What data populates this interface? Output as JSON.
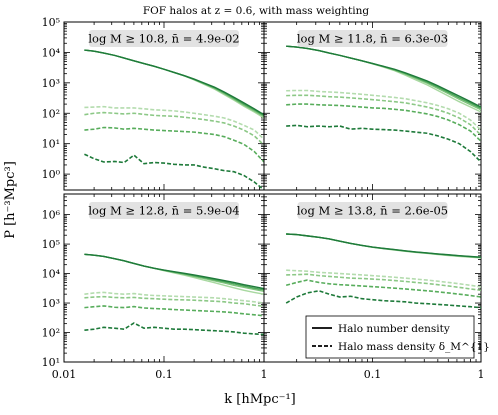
{
  "figure": {
    "title": "FOF halos at z = 0.6, with mass weighting",
    "xlabel": "k [hMpc⁻¹]",
    "ylabel": "P [h⁻³Mpc³]"
  },
  "legend": {
    "solid": "Halo number density",
    "dashed": "Halo mass density δ_M^{1}"
  },
  "colors": {
    "solid": [
      "#c8c8c8",
      "#a8d8a0",
      "#7cc27a",
      "#4aa458",
      "#1e7a3a"
    ],
    "dashed": [
      "#d0d0d0",
      "#b4dcae",
      "#8cc886",
      "#58ad5c",
      "#1e7a3a"
    ]
  },
  "chart_data": [
    {
      "type": "line",
      "label": "log M ≥ 10.8, n̄ = 4.9e-02",
      "xscale": "log",
      "yscale": "log",
      "xlim": [
        0.01,
        1
      ],
      "ylim": [
        0.3,
        100000
      ],
      "yticks": [
        1,
        10,
        100,
        1000,
        10000,
        100000
      ],
      "yticklabels": [
        "10⁰",
        "10¹",
        "10²",
        "10³",
        "10⁴",
        "10⁵"
      ],
      "x": [
        0.016,
        0.02,
        0.025,
        0.032,
        0.04,
        0.05,
        0.063,
        0.08,
        0.1,
        0.126,
        0.16,
        0.2,
        0.25,
        0.32,
        0.4,
        0.5,
        0.63,
        0.8,
        1.0
      ],
      "series_solid": [
        [
          12000,
          11000,
          9500,
          8000,
          6500,
          5300,
          4300,
          3500,
          2800,
          2200,
          1700,
          1250,
          900,
          620,
          410,
          270,
          170,
          110,
          70
        ],
        [
          12000,
          11000,
          9500,
          8000,
          6500,
          5300,
          4300,
          3500,
          2800,
          2200,
          1700,
          1280,
          940,
          660,
          440,
          290,
          185,
          120,
          78
        ],
        [
          12000,
          11000,
          9500,
          8000,
          6500,
          5300,
          4300,
          3500,
          2800,
          2200,
          1700,
          1300,
          960,
          690,
          470,
          310,
          200,
          130,
          84
        ],
        [
          12000,
          11000,
          9500,
          8000,
          6500,
          5300,
          4300,
          3500,
          2800,
          2200,
          1720,
          1330,
          1000,
          720,
          500,
          335,
          220,
          140,
          90
        ]
      ],
      "series_dashed": [
        [
          155,
          160,
          165,
          150,
          150,
          150,
          140,
          130,
          125,
          120,
          110,
          100,
          90,
          80,
          70,
          55,
          40,
          28,
          14
        ],
        [
          90,
          100,
          105,
          100,
          95,
          100,
          92,
          85,
          82,
          80,
          74,
          68,
          62,
          55,
          48,
          38,
          28,
          18,
          9
        ],
        [
          28,
          30,
          34,
          33,
          30,
          32,
          30,
          28,
          27,
          26,
          25,
          24,
          22,
          20,
          17,
          13,
          9.5,
          5.5,
          2.5
        ],
        [
          4.5,
          3.2,
          2.5,
          2.6,
          2.4,
          4.2,
          2.2,
          2.4,
          2.3,
          2.1,
          2.0,
          2.0,
          1.7,
          1.5,
          1.3,
          1.2,
          0.9,
          0.55,
          0.3
        ]
      ]
    },
    {
      "type": "line",
      "label": "log M ≥ 11.8, n̄ = 6.3e-03",
      "xscale": "log",
      "yscale": "log",
      "xlim": [
        0.01,
        1
      ],
      "ylim": [
        0.3,
        100000
      ],
      "x": [
        0.016,
        0.02,
        0.025,
        0.032,
        0.04,
        0.05,
        0.063,
        0.08,
        0.1,
        0.126,
        0.16,
        0.2,
        0.25,
        0.32,
        0.4,
        0.5,
        0.63,
        0.8,
        1.0
      ],
      "series_solid": [
        [
          16000,
          15000,
          13500,
          11500,
          9500,
          8000,
          6500,
          5300,
          4200,
          3300,
          2500,
          1800,
          1250,
          850,
          560,
          370,
          240,
          160,
          110
        ],
        [
          16000,
          15000,
          13500,
          11500,
          9500,
          8000,
          6500,
          5300,
          4250,
          3400,
          2600,
          1950,
          1400,
          970,
          660,
          440,
          290,
          190,
          130
        ],
        [
          16000,
          15000,
          13500,
          11500,
          9500,
          8000,
          6500,
          5300,
          4300,
          3450,
          2700,
          2050,
          1500,
          1060,
          730,
          490,
          325,
          215,
          145
        ],
        [
          16000,
          15000,
          13500,
          11500,
          9500,
          8000,
          6500,
          5300,
          4350,
          3500,
          2800,
          2150,
          1600,
          1150,
          800,
          545,
          365,
          240,
          160
        ]
      ],
      "series_dashed": [
        [
          550,
          560,
          560,
          520,
          500,
          480,
          450,
          420,
          390,
          360,
          330,
          300,
          260,
          220,
          180,
          140,
          100,
          60,
          28
        ],
        [
          380,
          390,
          390,
          370,
          350,
          340,
          320,
          300,
          280,
          260,
          240,
          220,
          190,
          160,
          130,
          100,
          70,
          42,
          19
        ],
        [
          190,
          200,
          200,
          190,
          185,
          180,
          170,
          160,
          150,
          145,
          135,
          125,
          110,
          95,
          78,
          60,
          42,
          26,
          12
        ],
        [
          38,
          40,
          36,
          38,
          36,
          38,
          30,
          32,
          30,
          29,
          28,
          26,
          24,
          22,
          18,
          14,
          10,
          5.5,
          2.5
        ]
      ]
    },
    {
      "type": "line",
      "label": "log M ≥ 12.8, n̄ = 5.9e-04",
      "xscale": "log",
      "yscale": "log",
      "xlim": [
        0.01,
        1
      ],
      "ylim": [
        10,
        5000000
      ],
      "yticks": [
        10,
        100,
        1000,
        10000,
        100000,
        1000000
      ],
      "yticklabels": [
        "10¹",
        "10²",
        "10³",
        "10⁴",
        "10⁵",
        "10⁶"
      ],
      "x": [
        0.016,
        0.02,
        0.025,
        0.032,
        0.04,
        0.05,
        0.063,
        0.08,
        0.1,
        0.126,
        0.16,
        0.2,
        0.25,
        0.32,
        0.4,
        0.5,
        0.63,
        0.8,
        1.0
      ],
      "series_solid": [
        [
          45000,
          42000,
          38000,
          32000,
          27000,
          22000,
          18000,
          15000,
          12500,
          10500,
          8800,
          7300,
          6000,
          4900,
          4000,
          3300,
          2700,
          2300,
          2000
        ],
        [
          45000,
          42000,
          38000,
          32000,
          27000,
          22000,
          18000,
          15000,
          12800,
          11000,
          9400,
          8000,
          6800,
          5700,
          4800,
          4000,
          3400,
          2900,
          2500
        ],
        [
          45000,
          42000,
          38000,
          32000,
          27000,
          22000,
          18000,
          15000,
          13000,
          11300,
          9800,
          8500,
          7300,
          6200,
          5300,
          4500,
          3800,
          3200,
          2800
        ],
        [
          45000,
          42000,
          38000,
          32000,
          27000,
          22000,
          18000,
          15000,
          13200,
          11600,
          10200,
          9000,
          7800,
          6700,
          5800,
          5000,
          4200,
          3600,
          3100
        ]
      ],
      "series_dashed": [
        [
          2000,
          2200,
          2300,
          2100,
          2000,
          2100,
          1900,
          1800,
          1750,
          1700,
          1650,
          1600,
          1550,
          1500,
          1400,
          1300,
          1200,
          1100,
          1000
        ],
        [
          1500,
          1600,
          1650,
          1550,
          1500,
          1550,
          1450,
          1400,
          1350,
          1300,
          1280,
          1250,
          1200,
          1150,
          1100,
          1000,
          950,
          850,
          780
        ],
        [
          700,
          750,
          800,
          720,
          700,
          760,
          680,
          650,
          630,
          600,
          580,
          560,
          540,
          520,
          500,
          470,
          430,
          400,
          370
        ],
        [
          120,
          130,
          150,
          140,
          130,
          210,
          140,
          150,
          140,
          130,
          130,
          125,
          120,
          115,
          110,
          105,
          95,
          90,
          85
        ]
      ]
    },
    {
      "type": "line",
      "label": "log M ≥ 13.8, n̄ = 2.6e-05",
      "xscale": "log",
      "yscale": "log",
      "xlim": [
        0.01,
        1
      ],
      "ylim": [
        10,
        5000000
      ],
      "x": [
        0.016,
        0.02,
        0.025,
        0.032,
        0.04,
        0.05,
        0.063,
        0.08,
        0.1,
        0.126,
        0.16,
        0.2,
        0.25,
        0.32,
        0.4,
        0.5,
        0.63,
        0.8,
        1.0
      ],
      "series_solid": [
        [
          220000,
          210000,
          190000,
          170000,
          150000,
          125000,
          105000,
          90000,
          78000,
          70000,
          63000,
          57000,
          52000,
          48000,
          44000,
          41000,
          38000,
          36000,
          34000
        ],
        [
          220000,
          210000,
          190000,
          170000,
          150000,
          125000,
          105000,
          90000,
          78500,
          70500,
          64000,
          58000,
          53000,
          49000,
          45500,
          42500,
          39500,
          37000,
          35000
        ],
        [
          220000,
          210000,
          190000,
          170000,
          150000,
          125000,
          105000,
          90000,
          79000,
          71000,
          64500,
          58500,
          53500,
          49500,
          46000,
          43000,
          40000,
          37500,
          35500
        ],
        [
          220000,
          210000,
          190000,
          170000,
          150000,
          125000,
          105000,
          90000,
          79500,
          71500,
          65000,
          59000,
          54000,
          50000,
          46500,
          43500,
          40500,
          38000,
          36000
        ]
      ],
      "series_dashed": [
        [
          13000,
          12500,
          12000,
          11000,
          10500,
          10000,
          9500,
          9000,
          8500,
          8000,
          7500,
          7000,
          6500,
          6000,
          5500,
          5000,
          4500,
          4000,
          3500
        ],
        [
          9000,
          9200,
          9500,
          8500,
          8000,
          7500,
          7000,
          6800,
          6500,
          6200,
          5800,
          5400,
          5000,
          4600,
          4200,
          3800,
          3400,
          3000,
          2700
        ],
        [
          4000,
          5000,
          6000,
          5000,
          4500,
          4200,
          4000,
          3800,
          3600,
          3400,
          3200,
          3000,
          2800,
          2600,
          2400,
          2200,
          2000,
          1800,
          1600
        ],
        [
          1000,
          1600,
          2200,
          2600,
          2000,
          1600,
          1700,
          1400,
          1300,
          1200,
          1150,
          1100,
          1000,
          950,
          900,
          850,
          800,
          750,
          700
        ]
      ]
    }
  ]
}
